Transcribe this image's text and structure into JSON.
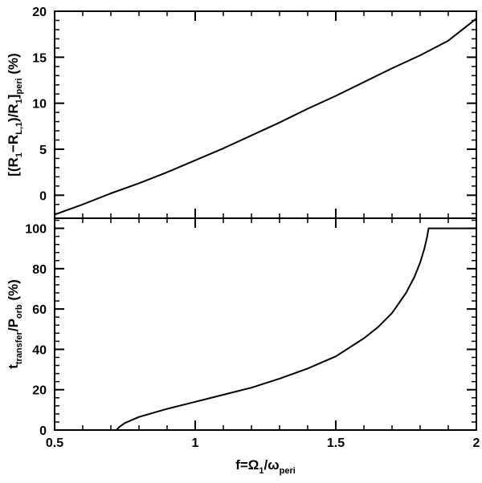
{
  "chart_data": [
    {
      "type": "line",
      "panel": "top",
      "ylabel_parts": [
        "[(R",
        "1",
        "−R",
        "L,1",
        ")/R",
        "1",
        "]",
        "peri",
        " (%)"
      ],
      "xlim": [
        0.5,
        2.0
      ],
      "ylim": [
        -2.5,
        20
      ],
      "yticks": [
        0,
        5,
        10,
        15,
        20
      ],
      "grid": false,
      "series": [
        {
          "x": [
            0.5,
            0.6,
            0.7,
            0.8,
            0.9,
            1.0,
            1.1,
            1.2,
            1.3,
            1.4,
            1.5,
            1.6,
            1.7,
            1.8,
            1.9,
            2.0
          ],
          "y": [
            -2.1,
            -1.0,
            0.2,
            1.3,
            2.5,
            3.8,
            5.1,
            6.5,
            7.9,
            9.4,
            10.8,
            12.3,
            13.8,
            15.2,
            16.8,
            19.2
          ]
        }
      ]
    },
    {
      "type": "line",
      "panel": "bottom",
      "ylabel_parts": [
        "t",
        "transfer",
        "/P",
        "orb",
        " (%)"
      ],
      "xlabel_parts": [
        "f=Ω",
        "1",
        "/ω",
        "peri"
      ],
      "xlim": [
        0.5,
        2.0
      ],
      "ylim": [
        0,
        105
      ],
      "yticks": [
        0,
        20,
        40,
        60,
        80,
        100
      ],
      "xticks": [
        0.5,
        1,
        1.5,
        2
      ],
      "xtick_labels": [
        "0.5",
        "1",
        "1.5",
        "2"
      ],
      "grid": false,
      "series": [
        {
          "x": [
            0.72,
            0.73,
            0.75,
            0.8,
            0.9,
            1.0,
            1.1,
            1.2,
            1.3,
            1.4,
            1.5,
            1.6,
            1.65,
            1.7,
            1.75,
            1.78,
            1.8,
            1.815,
            1.825,
            1.83,
            1.9,
            2.0
          ],
          "y": [
            0,
            1.5,
            3.5,
            6.5,
            10.5,
            14.0,
            17.5,
            21.0,
            25.5,
            30.5,
            36.5,
            45.5,
            51.0,
            58.0,
            68.0,
            76.0,
            83.0,
            90.0,
            96.0,
            100,
            100,
            100
          ]
        }
      ]
    }
  ]
}
